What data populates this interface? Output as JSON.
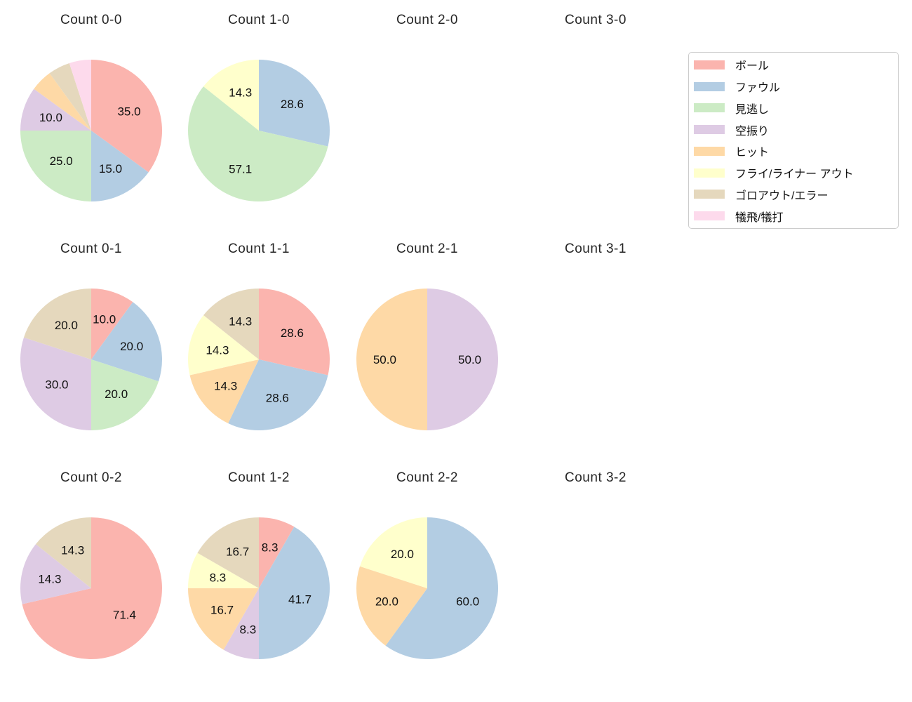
{
  "figure": {
    "background": "#ffffff",
    "title_color": "#262626",
    "label_color": "#111111"
  },
  "legend": {
    "entries": [
      {
        "label": "ボール",
        "color": "#fbb4ae"
      },
      {
        "label": "ファウル",
        "color": "#b3cde3"
      },
      {
        "label": "見逃し",
        "color": "#ccebc5"
      },
      {
        "label": "空振り",
        "color": "#decbe4"
      },
      {
        "label": "ヒット",
        "color": "#fed9a6"
      },
      {
        "label": "フライ/ライナー アウト",
        "color": "#ffffcc"
      },
      {
        "label": "ゴロアウト/エラー",
        "color": "#e5d8bd"
      },
      {
        "label": "犠飛/犠打",
        "color": "#fddaec"
      }
    ]
  },
  "chart_data": [
    {
      "type": "pie",
      "title": "Count 0-0",
      "grid": {
        "row": 0,
        "col": 0
      },
      "start_angle_deg": 90,
      "direction": "clockwise",
      "pct_label_distance": 0.6,
      "slices": [
        {
          "category": "ボール",
          "value": 35.0,
          "label": "35.0"
        },
        {
          "category": "ファウル",
          "value": 15.0,
          "label": "15.0"
        },
        {
          "category": "見逃し",
          "value": 25.0,
          "label": "25.0"
        },
        {
          "category": "空振り",
          "value": 10.0,
          "label": "10.0"
        },
        {
          "category": "ヒット",
          "value": 5.0,
          "label": ""
        },
        {
          "category": "ゴロアウト/エラー",
          "value": 5.0,
          "label": ""
        },
        {
          "category": "犠飛/犠打",
          "value": 5.0,
          "label": ""
        }
      ]
    },
    {
      "type": "pie",
      "title": "Count 1-0",
      "grid": {
        "row": 0,
        "col": 1
      },
      "start_angle_deg": 90,
      "direction": "clockwise",
      "pct_label_distance": 0.6,
      "slices": [
        {
          "category": "ファウル",
          "value": 28.6,
          "label": "28.6"
        },
        {
          "category": "見逃し",
          "value": 57.1,
          "label": "57.1"
        },
        {
          "category": "フライ/ライナー アウト",
          "value": 14.3,
          "label": "14.3"
        }
      ]
    },
    {
      "type": "pie",
      "title": "Count 2-0",
      "grid": {
        "row": 0,
        "col": 2
      },
      "start_angle_deg": 90,
      "direction": "clockwise",
      "pct_label_distance": 0.6,
      "slices": []
    },
    {
      "type": "pie",
      "title": "Count 3-0",
      "grid": {
        "row": 0,
        "col": 3
      },
      "start_angle_deg": 90,
      "direction": "clockwise",
      "pct_label_distance": 0.6,
      "slices": []
    },
    {
      "type": "pie",
      "title": "Count 0-1",
      "grid": {
        "row": 1,
        "col": 0
      },
      "start_angle_deg": 90,
      "direction": "clockwise",
      "pct_label_distance": 0.6,
      "slices": [
        {
          "category": "ボール",
          "value": 10.0,
          "label": "10.0"
        },
        {
          "category": "ファウル",
          "value": 20.0,
          "label": "20.0"
        },
        {
          "category": "見逃し",
          "value": 20.0,
          "label": "20.0"
        },
        {
          "category": "空振り",
          "value": 30.0,
          "label": "30.0"
        },
        {
          "category": "ゴロアウト/エラー",
          "value": 20.0,
          "label": "20.0"
        }
      ]
    },
    {
      "type": "pie",
      "title": "Count 1-1",
      "grid": {
        "row": 1,
        "col": 1
      },
      "start_angle_deg": 90,
      "direction": "clockwise",
      "pct_label_distance": 0.6,
      "slices": [
        {
          "category": "ボール",
          "value": 28.6,
          "label": "28.6"
        },
        {
          "category": "ファウル",
          "value": 28.6,
          "label": "28.6"
        },
        {
          "category": "ヒット",
          "value": 14.3,
          "label": "14.3"
        },
        {
          "category": "フライ/ライナー アウト",
          "value": 14.3,
          "label": "14.3"
        },
        {
          "category": "ゴロアウト/エラー",
          "value": 14.3,
          "label": "14.3"
        }
      ]
    },
    {
      "type": "pie",
      "title": "Count 2-1",
      "grid": {
        "row": 1,
        "col": 2
      },
      "start_angle_deg": 90,
      "direction": "clockwise",
      "pct_label_distance": 0.6,
      "slices": [
        {
          "category": "空振り",
          "value": 50.0,
          "label": "50.0"
        },
        {
          "category": "ヒット",
          "value": 50.0,
          "label": "50.0"
        }
      ]
    },
    {
      "type": "pie",
      "title": "Count 3-1",
      "grid": {
        "row": 1,
        "col": 3
      },
      "start_angle_deg": 90,
      "direction": "clockwise",
      "pct_label_distance": 0.6,
      "slices": []
    },
    {
      "type": "pie",
      "title": "Count 0-2",
      "grid": {
        "row": 2,
        "col": 0
      },
      "start_angle_deg": 90,
      "direction": "clockwise",
      "pct_label_distance": 0.6,
      "slices": [
        {
          "category": "ボール",
          "value": 71.4,
          "label": "71.4"
        },
        {
          "category": "空振り",
          "value": 14.3,
          "label": "14.3"
        },
        {
          "category": "ゴロアウト/エラー",
          "value": 14.3,
          "label": "14.3"
        }
      ]
    },
    {
      "type": "pie",
      "title": "Count 1-2",
      "grid": {
        "row": 2,
        "col": 1
      },
      "start_angle_deg": 90,
      "direction": "clockwise",
      "pct_label_distance": 0.6,
      "slices": [
        {
          "category": "ボール",
          "value": 8.3,
          "label": "8.3"
        },
        {
          "category": "ファウル",
          "value": 41.7,
          "label": "41.7"
        },
        {
          "category": "空振り",
          "value": 8.3,
          "label": "8.3"
        },
        {
          "category": "ヒット",
          "value": 16.7,
          "label": "16.7"
        },
        {
          "category": "フライ/ライナー アウト",
          "value": 8.3,
          "label": "8.3"
        },
        {
          "category": "ゴロアウト/エラー",
          "value": 16.7,
          "label": "16.7"
        }
      ]
    },
    {
      "type": "pie",
      "title": "Count 2-2",
      "grid": {
        "row": 2,
        "col": 2
      },
      "start_angle_deg": 90,
      "direction": "clockwise",
      "pct_label_distance": 0.6,
      "slices": [
        {
          "category": "ファウル",
          "value": 60.0,
          "label": "60.0"
        },
        {
          "category": "ヒット",
          "value": 20.0,
          "label": "20.0"
        },
        {
          "category": "フライ/ライナー アウト",
          "value": 20.0,
          "label": "20.0"
        }
      ]
    },
    {
      "type": "pie",
      "title": "Count 3-2",
      "grid": {
        "row": 2,
        "col": 3
      },
      "start_angle_deg": 90,
      "direction": "clockwise",
      "pct_label_distance": 0.6,
      "slices": []
    }
  ]
}
